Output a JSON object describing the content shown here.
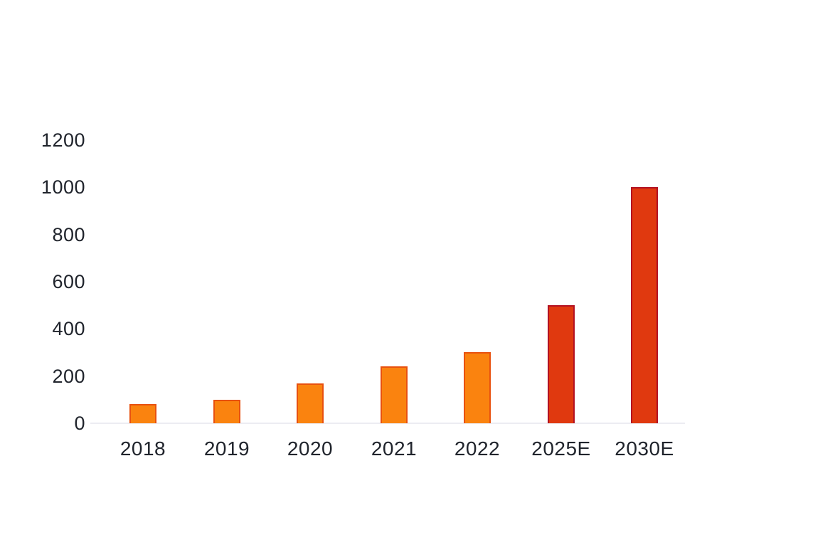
{
  "page": {
    "background_color": "#ffffff",
    "text_color": "#20242c"
  },
  "chart_data": {
    "type": "bar",
    "title": "",
    "xlabel": "",
    "ylabel": "",
    "categories": [
      "2018",
      "2019",
      "2020",
      "2021",
      "2022",
      "2025E",
      "2030E"
    ],
    "values": [
      80,
      100,
      170,
      240,
      300,
      500,
      1000
    ],
    "y_ticks": [
      0,
      200,
      400,
      600,
      800,
      1000,
      1200
    ],
    "ylim": [
      0,
      1200
    ],
    "grid": false,
    "legend": null,
    "bar_styles": [
      {
        "fill": "#fa830f",
        "border": "#e8510f"
      },
      {
        "fill": "#fa830f",
        "border": "#e8510f"
      },
      {
        "fill": "#fa830f",
        "border": "#e8510f"
      },
      {
        "fill": "#fa830f",
        "border": "#e8510f"
      },
      {
        "fill": "#fa830f",
        "border": "#e8510f"
      },
      {
        "fill": "#e0390f",
        "border": "#b31121"
      },
      {
        "fill": "#e0390f",
        "border": "#b31121"
      }
    ],
    "colors": {
      "historical_fill": "#fa830f",
      "historical_border": "#e8510f",
      "estimate_fill": "#e0390f",
      "estimate_border": "#b31121",
      "axis_line": "#ececf2",
      "label_text": "#20242c"
    }
  }
}
